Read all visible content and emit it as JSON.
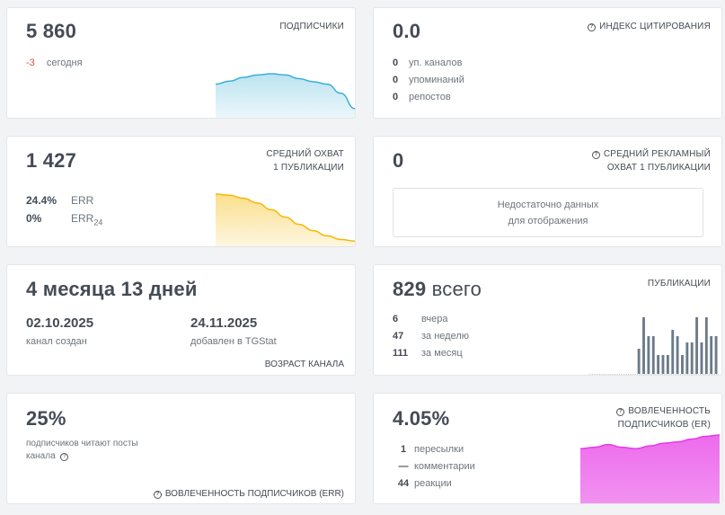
{
  "subscribers": {
    "value": "5 860",
    "label": "ПОДПИСЧИКИ",
    "delta": "-3",
    "delta_label": "сегодня",
    "chart_color": "#3ab0d5",
    "chart_values": [
      0.55,
      0.6,
      0.66,
      0.7,
      0.72,
      0.7,
      0.64,
      0.59,
      0.55,
      0.4,
      0.15
    ]
  },
  "citation": {
    "value": "0.0",
    "label": "ИНДЕКС ЦИТИРОВАНИЯ",
    "rows": [
      {
        "num": "0",
        "text": "уп. каналов"
      },
      {
        "num": "0",
        "text": "упоминаний"
      },
      {
        "num": "0",
        "text": "репостов"
      }
    ]
  },
  "reach": {
    "value": "1 427",
    "label_line1": "СРЕДНИЙ ОХВАТ",
    "label_line2": "1 ПУБЛИКАЦИИ",
    "err_value": "24.4%",
    "err_label": "ERR",
    "err24_value": "0%",
    "err24_label": "ERR",
    "err24_sub": "24",
    "chart_color": "#f5b800",
    "chart_values": [
      1.0,
      0.98,
      0.92,
      0.83,
      0.7,
      0.56,
      0.42,
      0.3,
      0.2,
      0.13,
      0.1
    ]
  },
  "ad_reach": {
    "value": "0",
    "label_line1": "СРЕДНИЙ РЕКЛАМНЫЙ",
    "label_line2": "ОХВАТ 1 ПУБЛИКАЦИИ",
    "empty_line1": "Недостаточно данных",
    "empty_line2": "для отображения"
  },
  "age": {
    "value": "4 месяца 13 дней",
    "created_date": "02.10.2025",
    "created_label": "канал создан",
    "added_date": "24.11.2025",
    "added_label": "добавлен в TGStat",
    "footer": "ВОЗРАСТ КАНАЛА"
  },
  "posts": {
    "value": "829",
    "value_unit": "всего",
    "label": "ПУБЛИКАЦИИ",
    "rows": [
      {
        "num": "6",
        "text": "вчера"
      },
      {
        "num": "47",
        "text": "за неделю"
      },
      {
        "num": "111",
        "text": "за месяц"
      }
    ],
    "bar_color": "#6c7a89",
    "bars": [
      0,
      0,
      0,
      0,
      0,
      0,
      0,
      0,
      0,
      0,
      4,
      9,
      6,
      6,
      3,
      3,
      3,
      7,
      6,
      3,
      5,
      5,
      9,
      5,
      9,
      6,
      6
    ]
  },
  "err_card": {
    "value": "25%",
    "desc_line1": "подписчиков читают посты",
    "desc_line2": "канала",
    "footer": "ВОВЛЕЧЕННОСТЬ ПОДПИСЧИКОВ (ERR)"
  },
  "er_card": {
    "value": "4.05%",
    "label_line1": "ВОВЛЕЧЕННОСТЬ",
    "label_line2": "ПОДПИСЧИКОВ (ER)",
    "rows": [
      {
        "num": "1",
        "text": "пересылки"
      },
      {
        "num": "—",
        "text": "комментарии"
      },
      {
        "num": "44",
        "text": "реакции"
      }
    ],
    "chart_color": "#e639e6",
    "chart_values": [
      0.8,
      0.82,
      0.86,
      0.82,
      0.8,
      0.84,
      0.88,
      0.9,
      0.94,
      0.98,
      1.0
    ]
  }
}
